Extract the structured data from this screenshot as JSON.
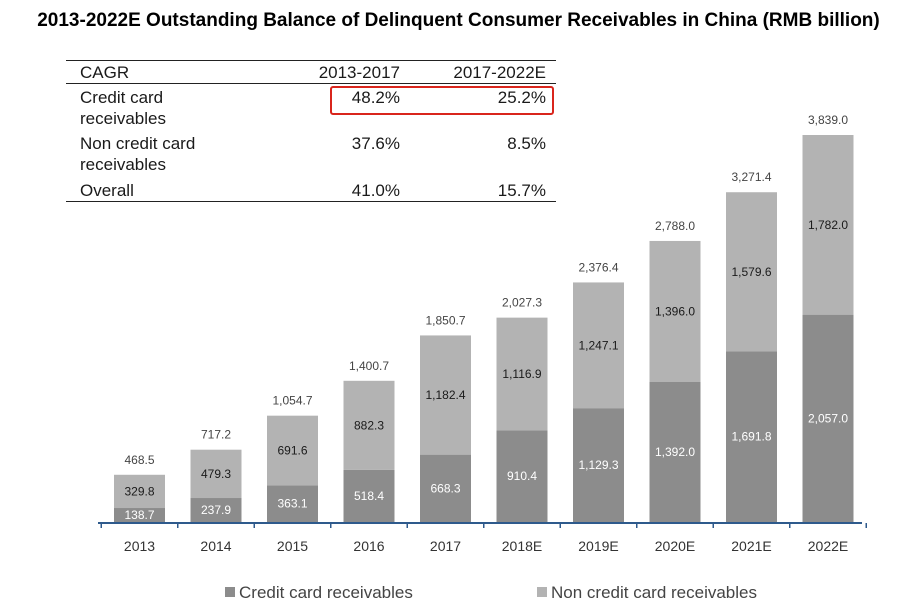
{
  "title": "2013-2022E Outstanding Balance of Delinquent Consumer Receivables in China (RMB billion)",
  "cagr_table": {
    "header": [
      "CAGR",
      "2013-2017",
      "2017-2022E"
    ],
    "rows": [
      {
        "label": [
          "Credit card",
          "receivables"
        ],
        "v1": "48.2%",
        "v2": "25.2%"
      },
      {
        "label": [
          "Non credit card",
          "receivables"
        ],
        "v1": "37.6%",
        "v2": "8.5%"
      },
      {
        "label": [
          "Overall"
        ],
        "v1": "41.0%",
        "v2": "15.7%"
      }
    ]
  },
  "colors": {
    "credit": "#8c8c8c",
    "noncredit": "#b3b3b3",
    "axis": "#2e5a8c",
    "highlight": "#d9251c"
  },
  "chart_data": {
    "type": "bar",
    "stacked": true,
    "title": "2013-2022E Outstanding Balance of Delinquent Consumer Receivables in China (RMB billion)",
    "categories": [
      "2013",
      "2014",
      "2015",
      "2016",
      "2017",
      "2018E",
      "2019E",
      "2020E",
      "2021E",
      "2022E"
    ],
    "series": [
      {
        "name": "Credit card receivables",
        "values": [
          138.7,
          237.9,
          363.1,
          518.4,
          668.3,
          910.4,
          1129.3,
          1392.0,
          1691.8,
          2057.0
        ],
        "labels": [
          "138.7",
          "237.9",
          "363.1",
          "518.4",
          "668.3",
          "910.4",
          "1,129.3",
          "1,392.0",
          "1,691.8",
          "2,057.0"
        ]
      },
      {
        "name": "Non credit card receivables",
        "values": [
          329.8,
          479.3,
          691.6,
          882.3,
          1182.4,
          1116.9,
          1247.1,
          1396.0,
          1579.6,
          1782.0
        ],
        "labels": [
          "329.8",
          "479.3",
          "691.6",
          "882.3",
          "1,182.4",
          "1,116.9",
          "1,247.1",
          "1,396.0",
          "1,579.6",
          "1,782.0"
        ]
      }
    ],
    "totals": [
      468.5,
      717.2,
      1054.7,
      1400.7,
      1850.7,
      2027.3,
      2376.4,
      2788.0,
      3271.4,
      3839.0
    ],
    "total_labels": [
      "468.5",
      "717.2",
      "1,054.7",
      "1,400.7",
      "1,850.7",
      "2,027.3",
      "2,376.4",
      "2,788.0",
      "3,271.4",
      "3,839.0"
    ],
    "xlabel": "",
    "ylabel": "",
    "ylim": [
      0,
      3839.0
    ],
    "legend": "bottom"
  }
}
